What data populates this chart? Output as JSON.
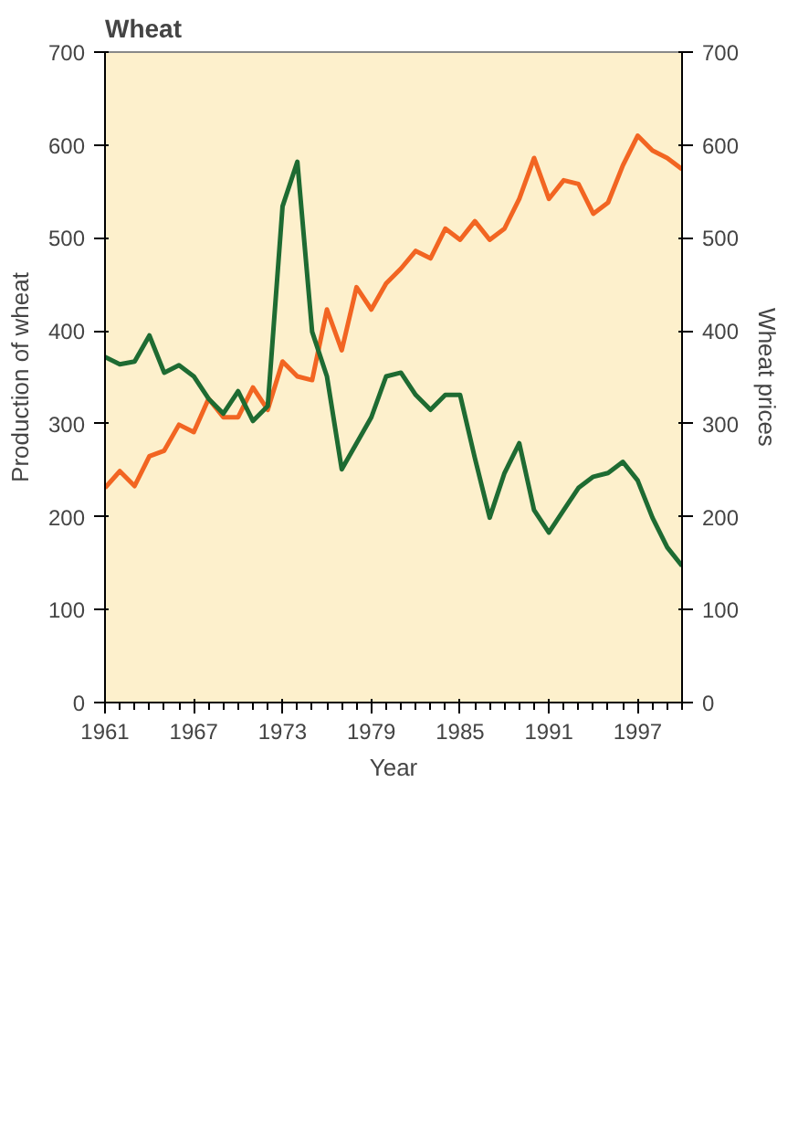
{
  "chart_data": {
    "type": "line",
    "title": "Wheat",
    "xlabel": "Year",
    "ylabel": "Production of wheat",
    "y2label": "Wheat prices",
    "x": [
      1961,
      1962,
      1963,
      1964,
      1965,
      1966,
      1967,
      1968,
      1969,
      1970,
      1971,
      1972,
      1973,
      1974,
      1975,
      1976,
      1977,
      1978,
      1979,
      1980,
      1981,
      1982,
      1983,
      1984,
      1985,
      1986,
      1987,
      1988,
      1989,
      1990,
      1991,
      1992,
      1993,
      1994,
      1995,
      1996,
      1997,
      1998,
      1999,
      2000
    ],
    "series": [
      {
        "color": "#f26522",
        "values": [
          231,
          249,
          233,
          265,
          271,
          299,
          291,
          327,
          307,
          307,
          339,
          315,
          367,
          351,
          347,
          423,
          379,
          447,
          423,
          451,
          467,
          486,
          478,
          510,
          498,
          518,
          498,
          510,
          542,
          586,
          542,
          562,
          558,
          526,
          538,
          578,
          610,
          594,
          586,
          574
        ]
      },
      {
        "color": "#1e6b32",
        "axis": "y2",
        "values": [
          372,
          364,
          367,
          395,
          355,
          363,
          351,
          327,
          311,
          335,
          303,
          319,
          534,
          582,
          399,
          351,
          251,
          279,
          307,
          351,
          355,
          331,
          315,
          331,
          331,
          263,
          199,
          247,
          279,
          207,
          183,
          207,
          231,
          243,
          247,
          259,
          239,
          199,
          167,
          147
        ]
      }
    ],
    "xlim": [
      1961,
      2000
    ],
    "xticks": [
      1961,
      1967,
      1973,
      1979,
      1985,
      1991,
      1997
    ],
    "ylim": [
      0,
      700
    ],
    "yticks": [
      0,
      100,
      200,
      300,
      400,
      500,
      600,
      700
    ],
    "y2lim": [
      0,
      700
    ],
    "y2ticks": [
      0,
      100,
      200,
      300,
      400,
      500,
      600,
      700
    ],
    "grid": false,
    "line_style": "solid",
    "marker": "none"
  }
}
